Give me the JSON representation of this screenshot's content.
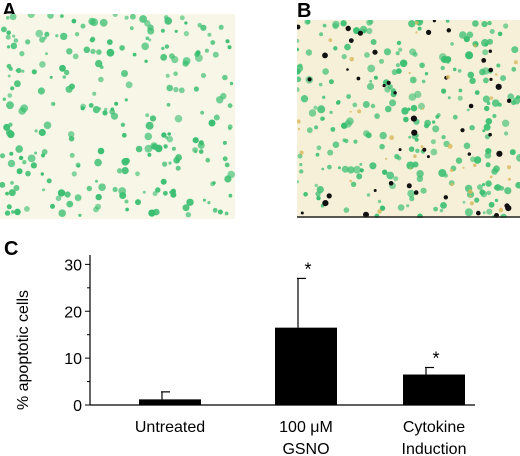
{
  "panels": {
    "a_label": "A",
    "b_label": "B",
    "c_label": "C",
    "a_colors": {
      "background": "#f8f6e7",
      "cell": "#3cbf72"
    },
    "b_colors": {
      "background": "#f6f0d9",
      "cell": "#3cbf72",
      "stain": "#111111",
      "yellow": "#d9b85b"
    }
  },
  "chart_data": {
    "type": "bar",
    "categories": [
      "Untreated",
      "100 μM GSNO",
      "Cytokine Induction"
    ],
    "category_lines": [
      [
        "Untreated"
      ],
      [
        "100 μM",
        "GSNO"
      ],
      [
        "Cytokine",
        "Induction"
      ]
    ],
    "values": [
      1.2,
      16.5,
      6.5
    ],
    "errors": [
      1.6,
      10.5,
      1.5
    ],
    "significance": [
      "",
      "*",
      "*"
    ],
    "xlabel": "",
    "ylabel": "% apoptotic cells",
    "ylim": [
      0,
      32
    ],
    "yticks": [
      0,
      10,
      20,
      30
    ],
    "bar_color": "#000000",
    "grid": false
  }
}
